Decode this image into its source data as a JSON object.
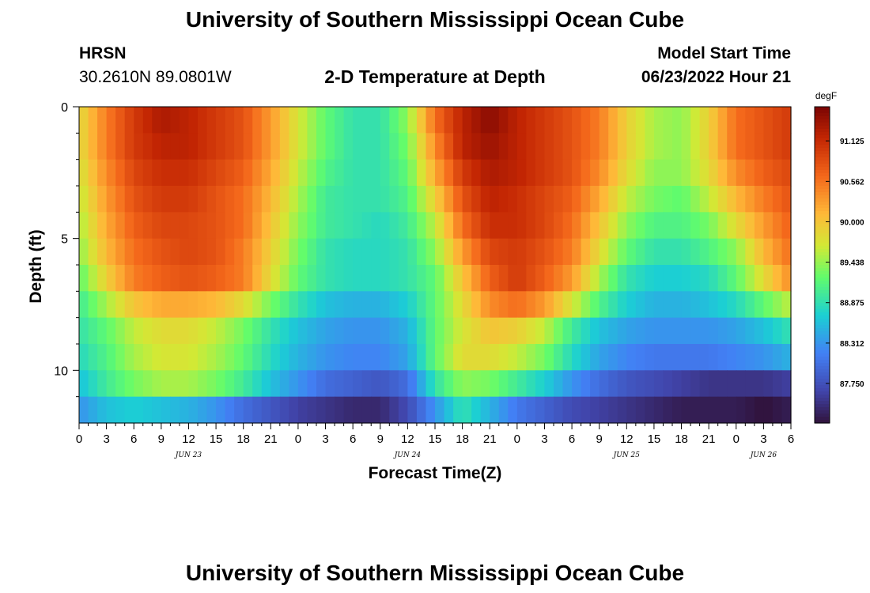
{
  "page": {
    "title_top": "University of Southern Mississippi Ocean Cube",
    "title_bottom": "University of Southern Mississippi Ocean Cube",
    "station": "HRSN",
    "location": "30.2610N  89.0801W",
    "plot_title": "2-D Temperature at Depth",
    "model_start_label": "Model Start Time",
    "model_start_value": "06/23/2022 Hour 21"
  },
  "chart_data": {
    "type": "heatmap",
    "title": "2-D Temperature at Depth",
    "xlabel": "Forecast Time(Z)",
    "ylabel": "Depth (ft)",
    "x_range_hours": [
      0,
      78
    ],
    "y_range_ft": [
      0,
      12
    ],
    "y_ticks": [
      0,
      5,
      10
    ],
    "x_tick_labels": [
      "0",
      "3",
      "6",
      "9",
      "12",
      "15",
      "18",
      "21",
      "0",
      "3",
      "6",
      "9",
      "12",
      "15",
      "18",
      "21",
      "0",
      "3",
      "6",
      "9",
      "12",
      "15",
      "18",
      "21",
      "0",
      "3",
      "6"
    ],
    "date_labels": [
      {
        "text": "JUN 23",
        "hour": 12
      },
      {
        "text": "JUN 24",
        "hour": 36
      },
      {
        "text": "JUN 25",
        "hour": 60
      },
      {
        "text": "JUN 26",
        "hour": 75
      }
    ],
    "colorbar": {
      "unit": "degF",
      "min": 87.2,
      "max": 91.6,
      "tick_values": [
        91.125,
        90.562,
        90.0,
        89.438,
        88.875,
        88.312,
        87.75
      ],
      "tick_labels": [
        "91.125",
        "90.562",
        "90.000",
        "89.438",
        "88.875",
        "88.312",
        "87.750"
      ]
    },
    "depth_rows_ft": [
      0.5,
      1.5,
      2.5,
      3.5,
      4.5,
      5.5,
      6.5,
      7.5,
      8.5,
      9.5,
      10.5,
      11.5
    ],
    "key_hours": [
      0,
      3,
      6,
      9,
      12,
      15,
      18,
      21,
      24,
      27,
      30,
      33,
      36,
      39,
      42,
      45,
      48,
      51,
      54,
      57,
      60,
      63,
      66,
      69,
      72,
      75,
      78
    ],
    "values_degF": [
      [
        89.8,
        90.5,
        91.0,
        91.3,
        91.2,
        91.0,
        90.8,
        90.3,
        89.7,
        89.2,
        88.9,
        88.9,
        89.4,
        90.6,
        91.2,
        91.5,
        91.2,
        91.0,
        90.8,
        90.5,
        89.9,
        89.5,
        89.4,
        89.9,
        90.6,
        90.8,
        91.0
      ],
      [
        89.8,
        90.5,
        91.0,
        91.2,
        91.2,
        91.0,
        90.8,
        90.3,
        89.7,
        89.2,
        88.9,
        88.9,
        89.3,
        90.4,
        91.2,
        91.4,
        91.2,
        91.0,
        90.8,
        90.5,
        89.9,
        89.5,
        89.4,
        89.9,
        90.6,
        90.8,
        91.0
      ],
      [
        89.7,
        90.4,
        90.9,
        91.1,
        91.1,
        90.9,
        90.7,
        90.2,
        89.6,
        89.1,
        88.9,
        88.9,
        89.2,
        90.2,
        91.0,
        91.3,
        91.2,
        91.0,
        90.8,
        90.4,
        89.8,
        89.4,
        89.4,
        89.8,
        90.4,
        90.7,
        90.9
      ],
      [
        89.6,
        90.3,
        90.8,
        91.0,
        91.0,
        90.8,
        90.6,
        90.1,
        89.5,
        89.0,
        88.9,
        88.9,
        89.1,
        89.9,
        90.8,
        91.2,
        91.1,
        90.9,
        90.7,
        90.2,
        89.6,
        89.3,
        89.2,
        89.6,
        90.1,
        90.5,
        90.8
      ],
      [
        89.5,
        90.2,
        90.7,
        90.9,
        90.9,
        90.8,
        90.6,
        90.0,
        89.4,
        89.0,
        88.9,
        88.8,
        89.0,
        89.6,
        90.6,
        91.1,
        91.1,
        90.9,
        90.6,
        90.0,
        89.4,
        89.1,
        89.1,
        89.3,
        89.8,
        90.3,
        90.7
      ],
      [
        89.4,
        90.1,
        90.6,
        90.8,
        90.9,
        90.8,
        90.5,
        89.9,
        89.3,
        88.9,
        88.8,
        88.8,
        88.9,
        89.4,
        90.3,
        90.9,
        91.0,
        90.8,
        90.5,
        89.8,
        89.2,
        88.9,
        88.9,
        89.1,
        89.4,
        90.1,
        90.6
      ],
      [
        89.2,
        89.9,
        90.5,
        90.7,
        90.8,
        90.7,
        90.5,
        89.8,
        89.2,
        88.9,
        88.8,
        88.8,
        88.9,
        89.2,
        90.0,
        90.7,
        91.0,
        90.7,
        90.3,
        89.5,
        88.9,
        88.7,
        88.7,
        88.8,
        89.2,
        89.8,
        90.4
      ],
      [
        89.0,
        89.5,
        90.0,
        90.2,
        90.2,
        90.1,
        89.8,
        89.3,
        88.9,
        88.6,
        88.5,
        88.5,
        88.7,
        89.2,
        89.8,
        90.4,
        90.6,
        90.3,
        89.7,
        89.1,
        88.7,
        88.5,
        88.5,
        88.6,
        88.8,
        89.2,
        89.6
      ],
      [
        88.9,
        89.2,
        89.6,
        89.8,
        89.8,
        89.6,
        89.3,
        88.9,
        88.6,
        88.4,
        88.3,
        88.3,
        88.5,
        89.2,
        89.7,
        90.0,
        89.9,
        89.6,
        89.0,
        88.6,
        88.4,
        88.3,
        88.3,
        88.3,
        88.4,
        88.6,
        88.9
      ],
      [
        88.8,
        89.1,
        89.5,
        89.7,
        89.7,
        89.5,
        89.2,
        88.8,
        88.5,
        88.3,
        88.2,
        88.2,
        88.4,
        89.2,
        89.8,
        89.8,
        89.6,
        89.3,
        88.8,
        88.4,
        88.2,
        88.1,
        88.1,
        88.1,
        88.2,
        88.3,
        88.5
      ],
      [
        88.6,
        89.0,
        89.3,
        89.5,
        89.5,
        89.3,
        89.0,
        88.6,
        88.3,
        88.0,
        87.9,
        87.8,
        88.0,
        88.9,
        89.4,
        89.3,
        89.0,
        88.7,
        88.3,
        88.0,
        87.8,
        87.7,
        87.6,
        87.5,
        87.5,
        87.5,
        87.6
      ],
      [
        88.3,
        88.6,
        88.7,
        88.6,
        88.5,
        88.3,
        88.0,
        87.8,
        87.6,
        87.5,
        87.4,
        87.4,
        87.7,
        88.3,
        88.9,
        88.5,
        88.1,
        87.9,
        87.7,
        87.6,
        87.5,
        87.4,
        87.3,
        87.3,
        87.3,
        87.2,
        87.3
      ]
    ]
  }
}
